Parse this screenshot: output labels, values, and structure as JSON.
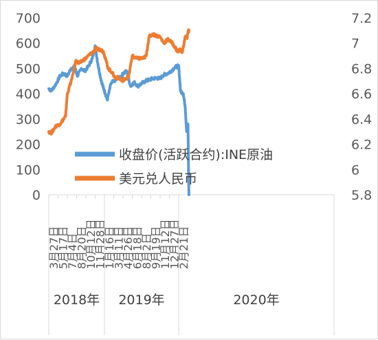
{
  "chart_data": {
    "type": "line",
    "title": "",
    "left_axis": {
      "min": 0,
      "max": 700,
      "step": 100,
      "ticks": [
        "0",
        "100",
        "200",
        "300",
        "400",
        "500",
        "600",
        "700"
      ]
    },
    "right_axis": {
      "min": 5.8,
      "max": 7.2,
      "step": 0.2,
      "ticks": [
        "5.8",
        "6",
        "6.2",
        "6.4",
        "6.6",
        "6.8",
        "7",
        "7.2"
      ]
    },
    "x_tick_labels": [
      "3月27日",
      "5月17日",
      "7月4日",
      "8月20日",
      "10月12日",
      "11月28日",
      "1月16日",
      "3月11日",
      "4月26日",
      "6月18日",
      "8月2日",
      "9月19日",
      "11月12日",
      "12月27日",
      "2月21日"
    ],
    "year_groups": [
      {
        "label": "2018年",
        "from": 0,
        "to": 6
      },
      {
        "label": "2019年",
        "from": 6,
        "to": 14
      },
      {
        "label": "2020年",
        "from": 14,
        "to": 15
      }
    ],
    "grid": false,
    "legend_position": "center-left, inside plot",
    "series": [
      {
        "name": "收盘价(活跃合约):INE原油",
        "axis": "left",
        "color": "#5b9bd5",
        "x": [
          0,
          0.3,
          0.8,
          1.2,
          1.6,
          2.0,
          2.4,
          2.8,
          3.1,
          3.5,
          3.9,
          4.3,
          4.7,
          5.0,
          5.3,
          5.6,
          5.9,
          6.1,
          6.3,
          6.7,
          7.0,
          7.5,
          7.8,
          8.0,
          8.4,
          8.8,
          9.2,
          9.6,
          10.0,
          10.4,
          10.8,
          11.2,
          11.6,
          12.0,
          12.4,
          12.8,
          13.2,
          13.6,
          14.0,
          14.2,
          14.5,
          14.7,
          14.85,
          15.0,
          15.1
        ],
        "values": [
          420,
          412,
          440,
          470,
          480,
          470,
          500,
          505,
          470,
          500,
          490,
          510,
          540,
          590,
          515,
          460,
          420,
          400,
          375,
          440,
          450,
          460,
          465,
          480,
          490,
          430,
          445,
          430,
          440,
          450,
          455,
          460,
          462,
          460,
          475,
          480,
          490,
          505,
          510,
          410,
          400,
          350,
          250,
          280,
          0
        ]
      },
      {
        "name": "美元兑人民币",
        "axis": "right",
        "color": "#ed7d31",
        "x": [
          0,
          0.3,
          0.7,
          1.2,
          1.6,
          1.8,
          2.0,
          2.5,
          2.9,
          3.3,
          3.6,
          4.0,
          4.4,
          4.8,
          5.1,
          5.3,
          5.6,
          5.9,
          6.1,
          6.4,
          6.8,
          7.2,
          7.5,
          7.9,
          8.2,
          8.6,
          9.0,
          9.4,
          9.8,
          10.2,
          10.5,
          10.8,
          11.2,
          11.6,
          12.0,
          12.4,
          12.8,
          13.2,
          13.6,
          13.9,
          14.1,
          14.4,
          14.7,
          14.9,
          15.0,
          15.1
        ],
        "values": [
          6.3,
          6.29,
          6.34,
          6.36,
          6.4,
          6.42,
          6.6,
          6.72,
          6.86,
          6.84,
          6.86,
          6.88,
          6.91,
          6.93,
          6.96,
          6.95,
          6.95,
          6.93,
          6.88,
          6.8,
          6.77,
          6.72,
          6.73,
          6.7,
          6.72,
          6.73,
          6.9,
          6.88,
          6.88,
          6.88,
          6.9,
          7.05,
          7.07,
          7.06,
          7.05,
          7.0,
          7.03,
          7.01,
          6.97,
          6.93,
          6.95,
          6.93,
          7.05,
          7.04,
          7.09,
          7.1
        ]
      }
    ]
  }
}
